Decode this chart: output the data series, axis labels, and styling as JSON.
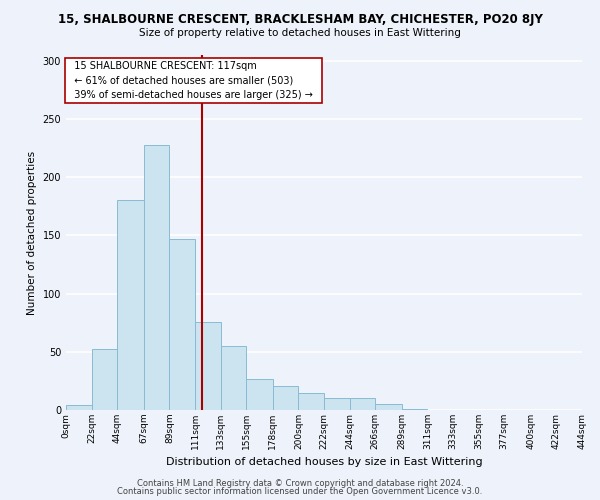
{
  "title": "15, SHALBOURNE CRESCENT, BRACKLESHAM BAY, CHICHESTER, PO20 8JY",
  "subtitle": "Size of property relative to detached houses in East Wittering",
  "xlabel": "Distribution of detached houses by size in East Wittering",
  "ylabel": "Number of detached properties",
  "bar_color": "#cce4f0",
  "bar_edge_color": "#88bcd4",
  "background_color": "#eef2fa",
  "grid_color": "#ffffff",
  "bin_labels": [
    "0sqm",
    "22sqm",
    "44sqm",
    "67sqm",
    "89sqm",
    "111sqm",
    "133sqm",
    "155sqm",
    "178sqm",
    "200sqm",
    "222sqm",
    "244sqm",
    "266sqm",
    "289sqm",
    "311sqm",
    "333sqm",
    "355sqm",
    "377sqm",
    "400sqm",
    "422sqm",
    "444sqm"
  ],
  "bar_values": [
    4,
    52,
    180,
    228,
    147,
    76,
    55,
    27,
    21,
    15,
    10,
    10,
    5,
    1,
    0,
    0,
    0,
    0,
    0,
    0
  ],
  "ylim": [
    0,
    305
  ],
  "yticks": [
    0,
    50,
    100,
    150,
    200,
    250,
    300
  ],
  "property_line_label": "15 SHALBOURNE CRESCENT: 117sqm",
  "annotation_line1": "← 61% of detached houses are smaller (503)",
  "annotation_line2": "39% of semi-detached houses are larger (325) →",
  "vline_color": "#aa0000",
  "annotation_box_edge": "#aa0000",
  "footer_line1": "Contains HM Land Registry data © Crown copyright and database right 2024.",
  "footer_line2": "Contains public sector information licensed under the Open Government Licence v3.0.",
  "bin_edges": [
    0,
    22,
    44,
    67,
    89,
    111,
    133,
    155,
    178,
    200,
    222,
    244,
    266,
    289,
    311,
    333,
    355,
    377,
    400,
    422,
    444
  ]
}
